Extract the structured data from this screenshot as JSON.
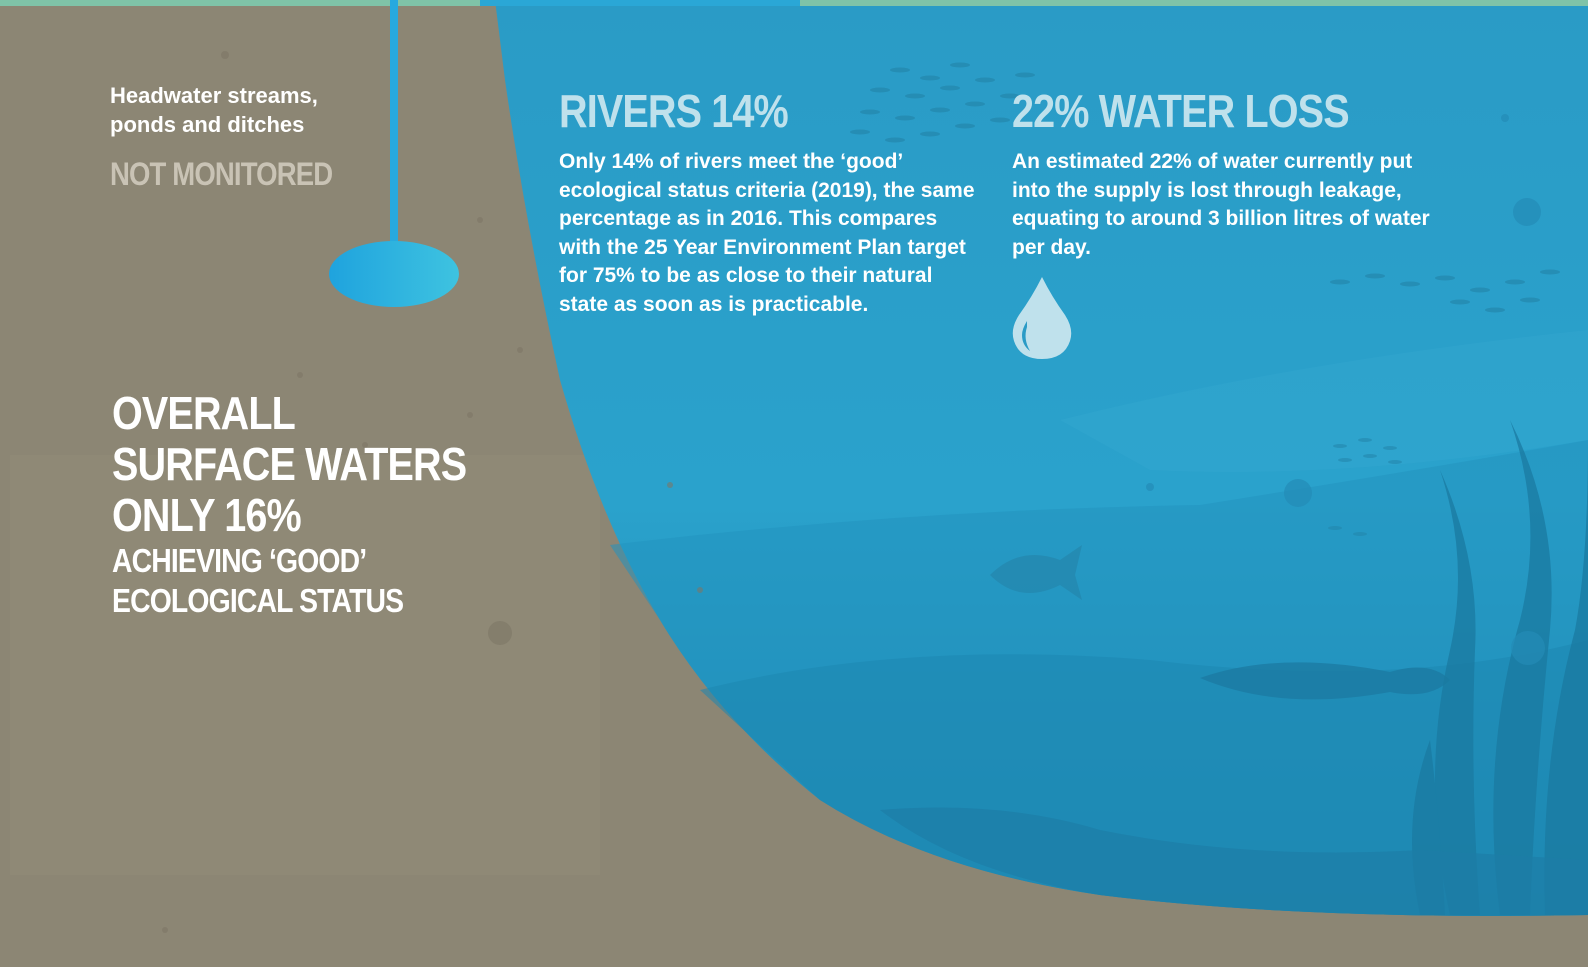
{
  "colors": {
    "ground": "#8c8674",
    "water": "#2e9fc8",
    "water_deep": "#1f7fa6",
    "heading_light": "#bfe1ec",
    "muted_label": "#c9c3b5",
    "text": "#ffffff"
  },
  "headwater": {
    "label": "Headwater streams, ponds and ditches",
    "status": "NOT MONITORED"
  },
  "overall": {
    "line1": "OVERALL",
    "line2": "SURFACE WATERS",
    "line3": "ONLY 16%",
    "line4": "ACHIEVING ‘GOOD’",
    "line5": "ECOLOGICAL STATUS"
  },
  "rivers": {
    "heading": "RIVERS 14%",
    "body": "Only 14% of rivers meet the ‘good’ ecological status criteria (2019), the same percentage as in 2016. This compares with the 25 Year Environment Plan target for 75% to be as close to their natural state as soon as is practicable."
  },
  "water_loss": {
    "heading": "22% WATER LOSS",
    "body": "An estimated 22% of water currently put into the supply is lost through leakage, equating to around 3 billion litres of water per day.",
    "icon": "water-drop-icon"
  }
}
